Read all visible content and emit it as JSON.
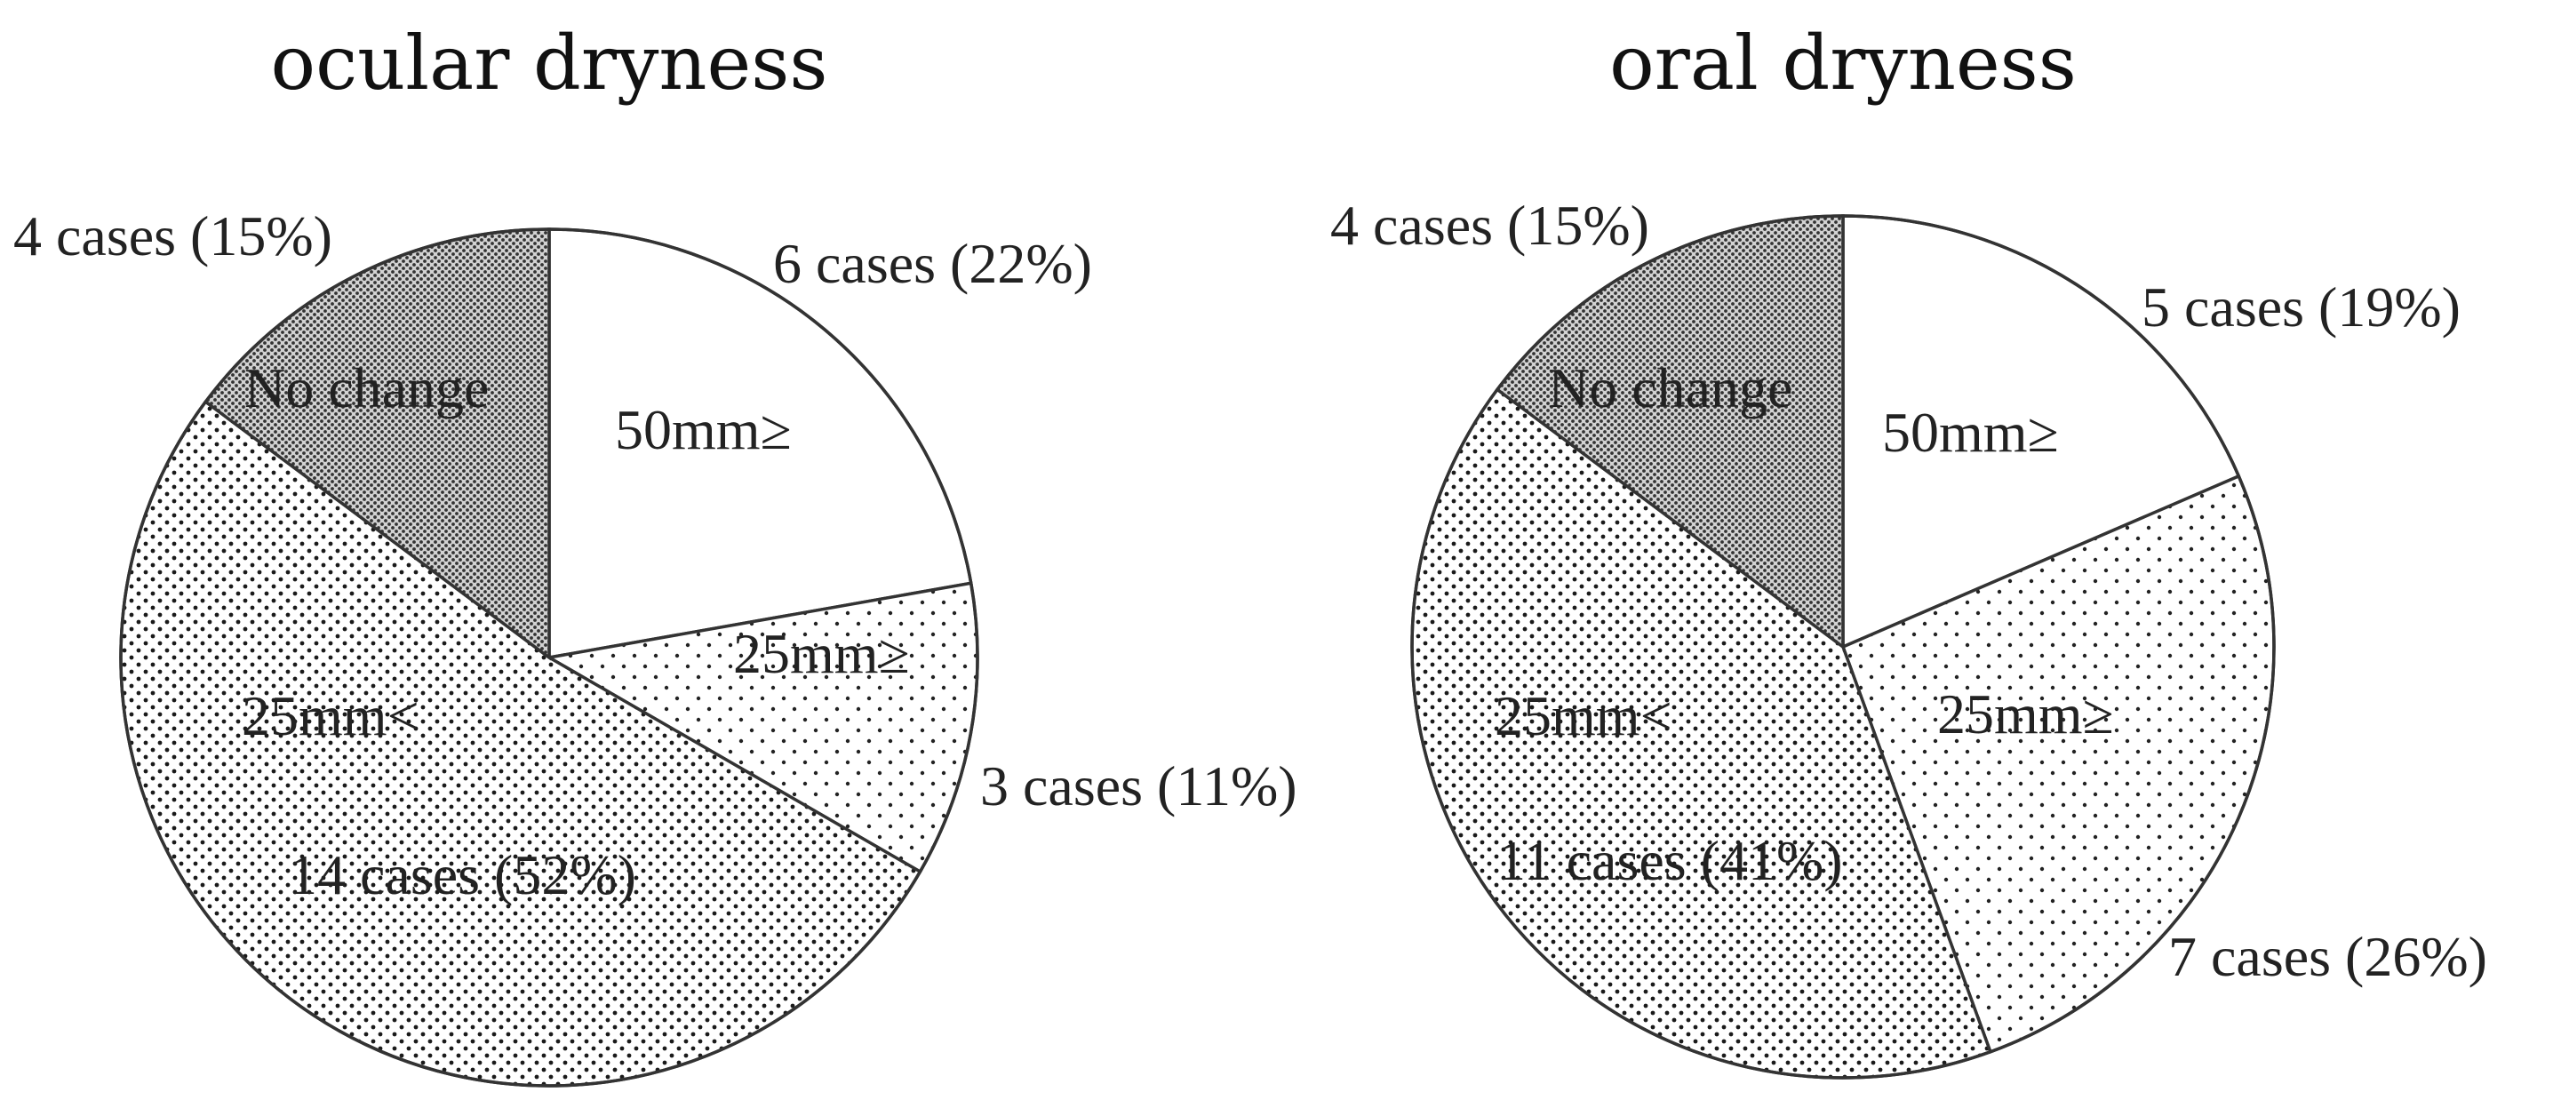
{
  "chart_data": [
    {
      "type": "pie",
      "title": "ocular dryness",
      "start_angle_deg": 0,
      "direction": "clockwise",
      "slices": [
        {
          "name": "50mm≥",
          "count": 6,
          "percent": 22,
          "label": "6 cases (22%)",
          "fill": "white"
        },
        {
          "name": "25mm≥",
          "count": 3,
          "percent": 11,
          "label": "3 cases (11%)",
          "fill": "light-dots"
        },
        {
          "name": "25mm<",
          "count": 14,
          "percent": 52,
          "label": "14 cases (52%)",
          "fill": "medium-dots"
        },
        {
          "name": "No change",
          "count": 4,
          "percent": 15,
          "label": "4 cases (15%)",
          "fill": "dense-dots"
        }
      ]
    },
    {
      "type": "pie",
      "title": "oral dryness",
      "start_angle_deg": 0,
      "direction": "clockwise",
      "slices": [
        {
          "name": "50mm≥",
          "count": 5,
          "percent": 19,
          "label": "5 cases (19%)",
          "fill": "white"
        },
        {
          "name": "25mm≥",
          "count": 7,
          "percent": 26,
          "label": "7 cases (26%)",
          "fill": "light-dots"
        },
        {
          "name": "25mm<",
          "count": 11,
          "percent": 41,
          "label": "11 cases (41%)",
          "fill": "medium-dots"
        },
        {
          "name": "No change",
          "count": 4,
          "percent": 15,
          "label": "4 cases (15%)",
          "fill": "dense-dots"
        }
      ]
    }
  ],
  "colors": {
    "background": "#ffffff",
    "stroke": "#333333",
    "dense_dots_background": "#d2d2d2",
    "dot": "#222222"
  }
}
